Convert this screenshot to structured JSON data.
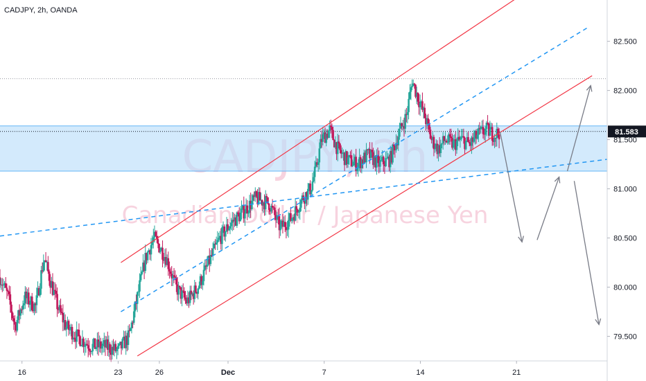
{
  "title": "CADJPY, 2h, OANDA",
  "watermark": {
    "symbol": "CADJPY, 2h",
    "description": "Canadian Dollar / Japanese Yen"
  },
  "current_price": "81.583",
  "colors": {
    "up": "#26a69a",
    "down": "#c2185b",
    "channel": "#f23645",
    "trend_dashed": "#2196f3",
    "zone_fill": "#bbdefb",
    "zone_border": "#64b5f6",
    "arrows": "#787b86",
    "price_tag": "#131722"
  },
  "chart_data": {
    "type": "candlestick",
    "title": "CADJPY, 2h, OANDA",
    "ylim": [
      79.25,
      82.92
    ],
    "y_ticks": [
      "82.500",
      "82.000",
      "81.500",
      "81.000",
      "80.500",
      "80.000",
      "79.500"
    ],
    "x_ticks": [
      "16",
      "23",
      "26",
      "Dec",
      "7",
      "14",
      "21"
    ],
    "x_tick_days": [
      0,
      7,
      10,
      15,
      22,
      29,
      36
    ],
    "x_range_days": [
      -1.6,
      42.6
    ],
    "highlight_zone": [
      81.18,
      81.64
    ],
    "high_reference_line": 82.12,
    "current_price": 81.583,
    "grid": false,
    "path_points_day_price": [
      [
        -1.6,
        80.1
      ],
      [
        -1.0,
        79.9
      ],
      [
        -0.5,
        79.6
      ],
      [
        0.2,
        79.9
      ],
      [
        1.0,
        79.8
      ],
      [
        1.6,
        80.3
      ],
      [
        2.0,
        80.1
      ],
      [
        2.6,
        79.8
      ],
      [
        3.2,
        79.6
      ],
      [
        4.0,
        79.5
      ],
      [
        5.0,
        79.4
      ],
      [
        6.0,
        79.4
      ],
      [
        7.0,
        79.35
      ],
      [
        7.8,
        79.5
      ],
      [
        8.4,
        79.9
      ],
      [
        9.0,
        80.3
      ],
      [
        9.6,
        80.5
      ],
      [
        10.5,
        80.3
      ],
      [
        11.2,
        80.0
      ],
      [
        12.0,
        79.85
      ],
      [
        12.8,
        80.0
      ],
      [
        13.6,
        80.25
      ],
      [
        14.4,
        80.5
      ],
      [
        15.2,
        80.65
      ],
      [
        16.0,
        80.75
      ],
      [
        17.0,
        80.9
      ],
      [
        18.0,
        80.85
      ],
      [
        18.8,
        80.6
      ],
      [
        19.6,
        80.7
      ],
      [
        20.4,
        80.9
      ],
      [
        21.0,
        81.0
      ],
      [
        21.4,
        81.2
      ],
      [
        21.8,
        81.5
      ],
      [
        22.4,
        81.6
      ],
      [
        23.0,
        81.4
      ],
      [
        23.6,
        81.3
      ],
      [
        24.4,
        81.25
      ],
      [
        25.2,
        81.35
      ],
      [
        26.0,
        81.25
      ],
      [
        26.8,
        81.3
      ],
      [
        27.4,
        81.55
      ],
      [
        28.0,
        81.75
      ],
      [
        28.4,
        82.1
      ],
      [
        28.9,
        81.9
      ],
      [
        29.4,
        81.7
      ],
      [
        29.8,
        81.5
      ],
      [
        30.3,
        81.4
      ],
      [
        30.8,
        81.5
      ],
      [
        31.4,
        81.45
      ],
      [
        32.0,
        81.5
      ],
      [
        32.6,
        81.45
      ],
      [
        33.2,
        81.55
      ],
      [
        33.8,
        81.6
      ],
      [
        34.4,
        81.55
      ],
      [
        34.8,
        81.58
      ]
    ],
    "channel_upper": [
      [
        7.2,
        80.25
      ],
      [
        37.2,
        83.05
      ]
    ],
    "channel_lower": [
      [
        8.4,
        79.3
      ],
      [
        41.5,
        82.15
      ]
    ],
    "dashed_trend_steep": [
      [
        7.2,
        79.75
      ],
      [
        41.3,
        82.65
      ]
    ],
    "dashed_trend_flat": [
      [
        -1.6,
        80.52
      ],
      [
        42.6,
        81.3
      ]
    ],
    "projection_arrows": [
      [
        [
          34.8,
          81.58
        ],
        [
          36.4,
          80.46
        ]
      ],
      [
        [
          37.5,
          80.48
        ],
        [
          39.1,
          81.12
        ]
      ],
      [
        [
          39.7,
          81.18
        ],
        [
          41.4,
          82.05
        ]
      ],
      [
        [
          40.2,
          81.08
        ],
        [
          42.0,
          79.62
        ]
      ]
    ]
  }
}
